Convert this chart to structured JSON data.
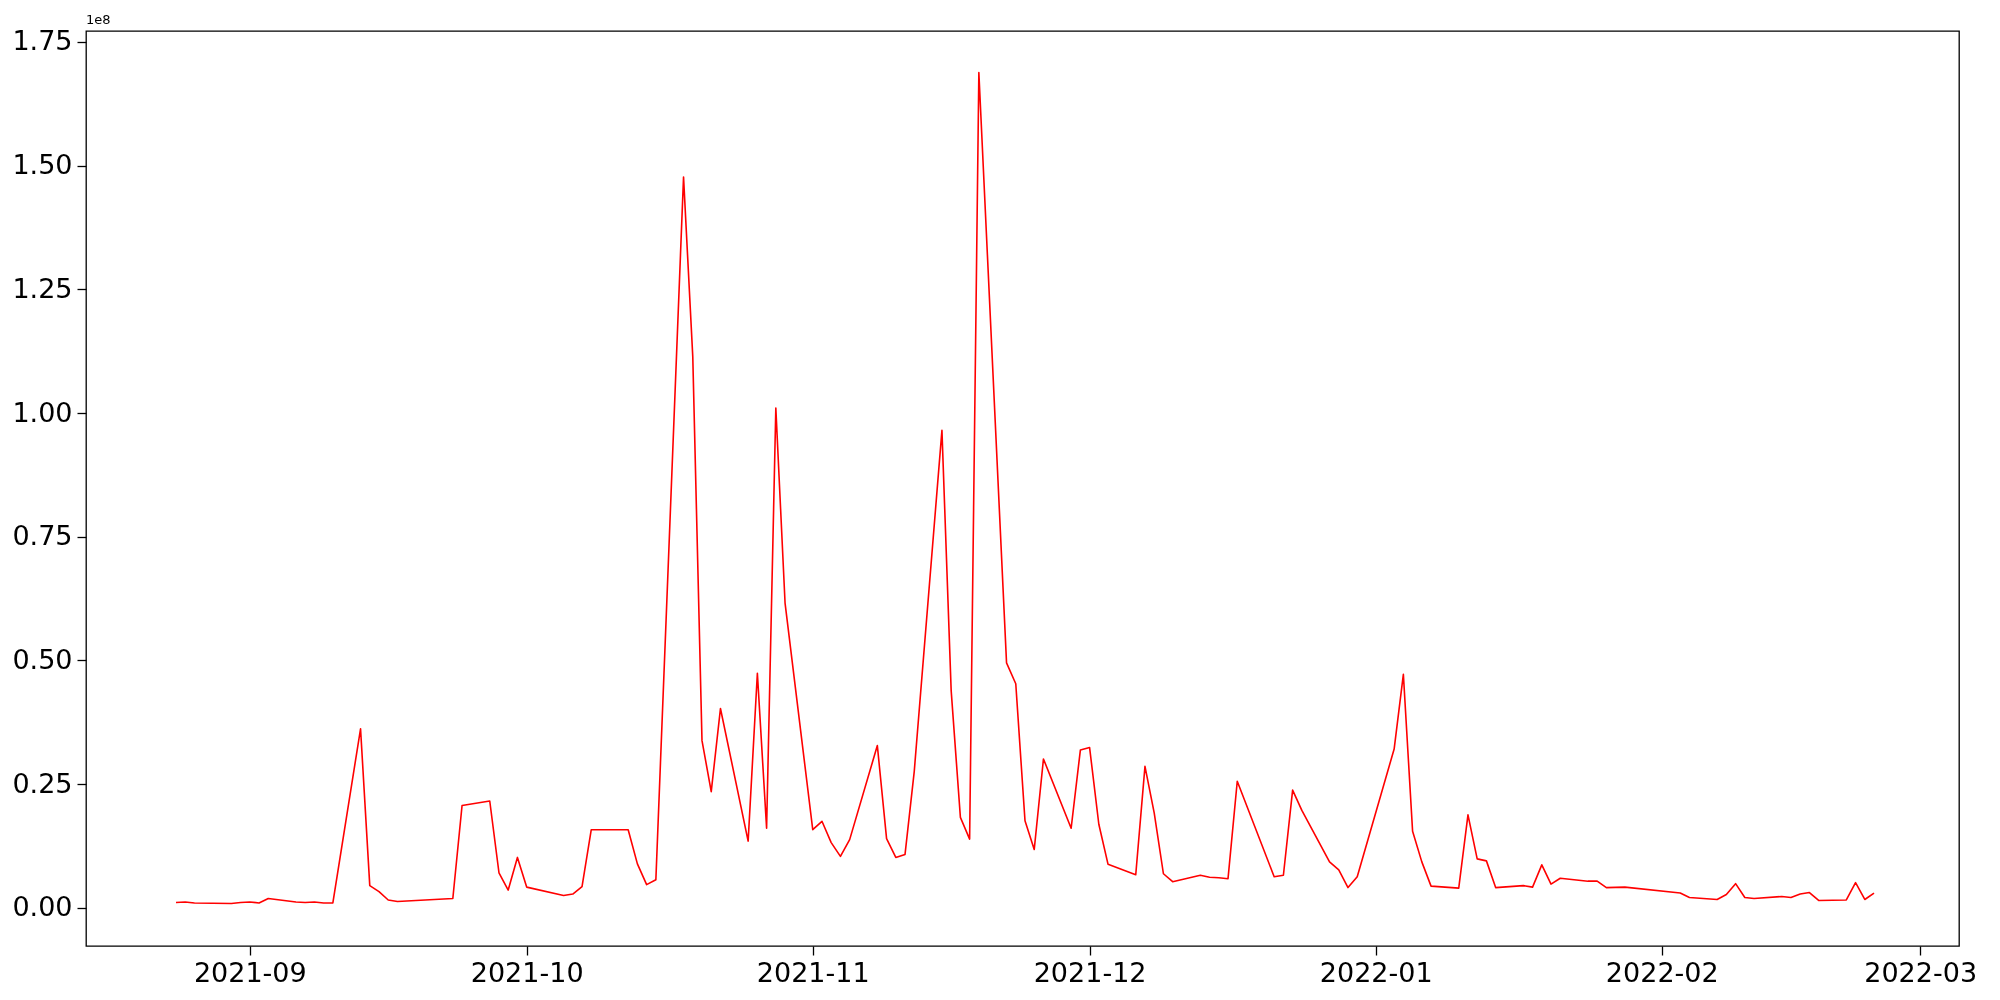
{
  "chart_data": {
    "type": "line",
    "x": [
      "2021-08-24",
      "2021-08-25",
      "2021-08-26",
      "2021-08-30",
      "2021-08-31",
      "2021-09-01",
      "2021-09-02",
      "2021-09-03",
      "2021-09-06",
      "2021-09-07",
      "2021-09-08",
      "2021-09-09",
      "2021-09-10",
      "2021-09-13",
      "2021-09-14",
      "2021-09-15",
      "2021-09-16",
      "2021-09-17",
      "2021-09-23",
      "2021-09-24",
      "2021-09-27",
      "2021-09-28",
      "2021-09-29",
      "2021-09-30",
      "2021-10-01",
      "2021-10-05",
      "2021-10-06",
      "2021-10-07",
      "2021-10-08",
      "2021-10-12",
      "2021-10-13",
      "2021-10-14",
      "2021-10-15",
      "2021-10-18",
      "2021-10-19",
      "2021-10-20",
      "2021-10-21",
      "2021-10-22",
      "2021-10-25",
      "2021-10-26",
      "2021-10-27",
      "2021-10-28",
      "2021-10-29",
      "2021-11-01",
      "2021-11-02",
      "2021-11-03",
      "2021-11-04",
      "2021-11-05",
      "2021-11-08",
      "2021-11-09",
      "2021-11-10",
      "2021-11-11",
      "2021-11-12",
      "2021-11-15",
      "2021-11-16",
      "2021-11-17",
      "2021-11-18",
      "2021-11-19",
      "2021-11-22",
      "2021-11-23",
      "2021-11-24",
      "2021-11-25",
      "2021-11-26",
      "2021-11-29",
      "2021-11-30",
      "2021-12-01",
      "2021-12-02",
      "2021-12-03",
      "2021-12-06",
      "2021-12-07",
      "2021-12-08",
      "2021-12-09",
      "2021-12-10",
      "2021-12-13",
      "2021-12-14",
      "2021-12-15",
      "2021-12-16",
      "2021-12-17",
      "2021-12-21",
      "2021-12-22",
      "2021-12-23",
      "2021-12-24",
      "2021-12-27",
      "2021-12-28",
      "2021-12-29",
      "2021-12-30",
      "2022-01-03",
      "2022-01-04",
      "2022-01-05",
      "2022-01-06",
      "2022-01-07",
      "2022-01-10",
      "2022-01-11",
      "2022-01-12",
      "2022-01-13",
      "2022-01-14",
      "2022-01-17",
      "2022-01-18",
      "2022-01-19",
      "2022-01-20",
      "2022-01-21",
      "2022-01-24",
      "2022-01-25",
      "2022-01-26",
      "2022-01-28",
      "2022-02-03",
      "2022-02-04",
      "2022-02-07",
      "2022-02-08",
      "2022-02-09",
      "2022-02-10",
      "2022-02-11",
      "2022-02-14",
      "2022-02-15",
      "2022-02-16",
      "2022-02-17",
      "2022-02-18",
      "2022-02-21",
      "2022-02-22",
      "2022-02-23",
      "2022-02-24"
    ],
    "series": [
      {
        "color": "#ff0000",
        "values": [
          0.011,
          0.012,
          0.01,
          0.009,
          0.011,
          0.012,
          0.01,
          0.019,
          0.012,
          0.011,
          0.012,
          0.01,
          0.01,
          0.362,
          0.045,
          0.033,
          0.016,
          0.013,
          0.019,
          0.207,
          0.216,
          0.071,
          0.036,
          0.102,
          0.042,
          0.025,
          0.028,
          0.043,
          0.158,
          0.158,
          0.089,
          0.047,
          0.057,
          1.477,
          1.114,
          0.338,
          0.235,
          0.403,
          0.135,
          0.474,
          0.161,
          1.01,
          0.616,
          0.158,
          0.175,
          0.132,
          0.104,
          0.138,
          0.328,
          0.14,
          0.102,
          0.108,
          0.276,
          0.965,
          0.439,
          0.183,
          0.139,
          1.688,
          0.495,
          0.453,
          0.176,
          0.118,
          0.301,
          0.161,
          0.319,
          0.324,
          0.169,
          0.088,
          0.067,
          0.286,
          0.192,
          0.069,
          0.053,
          0.066,
          0.062,
          0.061,
          0.059,
          0.256,
          0.063,
          0.066,
          0.238,
          0.197,
          0.093,
          0.077,
          0.041,
          0.063,
          0.321,
          0.472,
          0.155,
          0.093,
          0.044,
          0.04,
          0.188,
          0.099,
          0.095,
          0.041,
          0.045,
          0.042,
          0.087,
          0.048,
          0.06,
          0.054,
          0.054,
          0.041,
          0.042,
          0.03,
          0.021,
          0.017,
          0.027,
          0.049,
          0.021,
          0.019,
          0.023,
          0.021,
          0.028,
          0.031,
          0.015,
          0.016,
          0.051,
          0.017,
          0.03
        ]
      }
    ],
    "xlim": [
      "2021-08-14T06:00",
      "2022-03-05T05:00"
    ],
    "ylim": [
      -0.077,
      1.772
    ],
    "xticks": [
      {
        "value": "2021-09",
        "label": "2021-09"
      },
      {
        "value": "2021-10",
        "label": "2021-10"
      },
      {
        "value": "2021-11",
        "label": "2021-11"
      },
      {
        "value": "2021-12",
        "label": "2021-12"
      },
      {
        "value": "2022-01",
        "label": "2022-01"
      },
      {
        "value": "2022-02",
        "label": "2022-02"
      },
      {
        "value": "2022-03",
        "label": "2022-03"
      }
    ],
    "yticks": [
      {
        "value": 0,
        "label": "0.00"
      },
      {
        "value": 0.25,
        "label": "0.25"
      },
      {
        "value": 0.5,
        "label": "0.50"
      },
      {
        "value": 0.75,
        "label": "0.75"
      },
      {
        "value": 1.0,
        "label": "1.00"
      },
      {
        "value": 1.25,
        "label": "1.25"
      },
      {
        "value": 1.5,
        "label": "1.50"
      },
      {
        "value": 1.75,
        "label": "1.75"
      }
    ],
    "annotations": [
      "1e8"
    ],
    "marker": "none",
    "line_style": "solid"
  }
}
